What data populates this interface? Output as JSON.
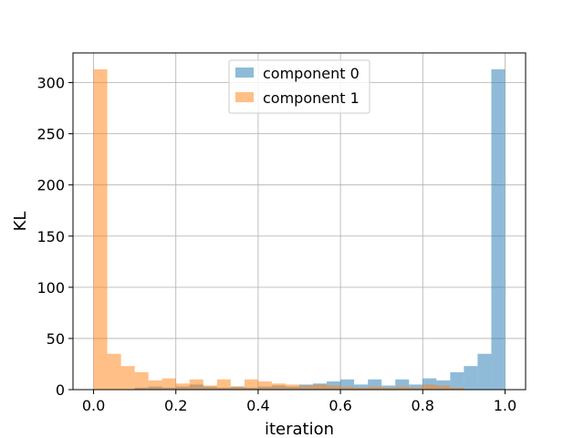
{
  "chart_data": {
    "type": "histogram",
    "title": "",
    "xlabel": "iteration",
    "ylabel": "KL",
    "xlim": [
      -0.05,
      1.05
    ],
    "ylim": [
      0,
      329
    ],
    "grid": true,
    "legend_position": "top-center",
    "bin_edges": [
      0.0,
      0.0333,
      0.0667,
      0.1,
      0.1333,
      0.1667,
      0.2,
      0.2333,
      0.2667,
      0.3,
      0.3333,
      0.3667,
      0.4,
      0.4333,
      0.4667,
      0.5,
      0.5333,
      0.5667,
      0.6,
      0.6333,
      0.6667,
      0.7,
      0.7333,
      0.7667,
      0.8,
      0.8333,
      0.8667,
      0.9,
      0.9333,
      0.9667,
      1.0
    ],
    "x_ticks": [
      "0.0",
      "0.2",
      "0.4",
      "0.6",
      "0.8",
      "1.0"
    ],
    "x_tick_values": [
      0.0,
      0.2,
      0.4,
      0.6,
      0.8,
      1.0
    ],
    "y_ticks": [
      "0",
      "50",
      "100",
      "150",
      "200",
      "250",
      "300"
    ],
    "y_tick_values": [
      0,
      50,
      100,
      150,
      200,
      250,
      300
    ],
    "series": [
      {
        "name": "component 0",
        "color": "#1f77b4",
        "alpha": 0.5,
        "values": [
          0,
          0,
          0,
          2,
          3,
          2,
          3,
          5,
          3,
          2,
          3,
          2,
          3,
          4,
          3,
          5,
          6,
          8,
          10,
          5,
          10,
          4,
          10,
          5,
          11,
          9,
          17,
          23,
          35,
          313
        ]
      },
      {
        "name": "component 1",
        "color": "#ff7f0e",
        "alpha": 0.5,
        "values": [
          313,
          35,
          23,
          17,
          9,
          11,
          6,
          10,
          4,
          10,
          3,
          10,
          8,
          6,
          5,
          4,
          5,
          4,
          3,
          2,
          3,
          2,
          3,
          2,
          5,
          4,
          2,
          0,
          0,
          0
        ]
      }
    ]
  }
}
